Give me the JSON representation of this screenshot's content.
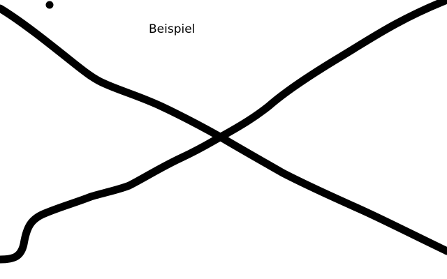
{
  "caption": "Beispiel",
  "colors": {
    "background": "#ffffff",
    "ink": "#000000"
  }
}
